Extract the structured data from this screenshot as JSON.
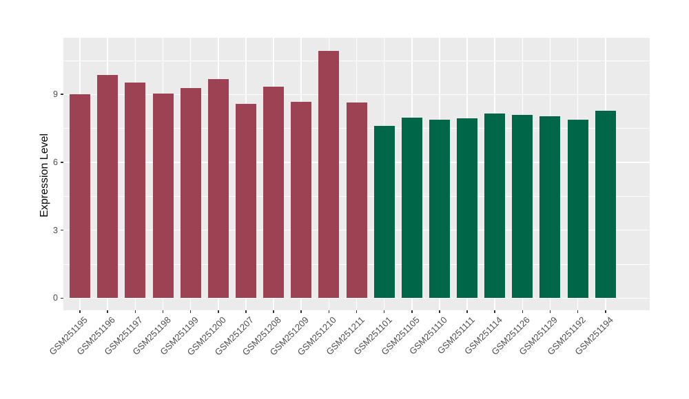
{
  "chart_data": {
    "type": "bar",
    "title": "",
    "xlabel": "",
    "ylabel": "Expression Level",
    "ylim": [
      0,
      11.5
    ],
    "yticks_major": [
      0,
      3,
      6,
      9
    ],
    "yticks_minor": [
      1.5,
      4.5,
      7.5,
      10.5
    ],
    "grid": "on",
    "legend_position": "none",
    "panel_background": "#EBEBEB",
    "grid_color": "#FFFFFF",
    "group_colors": {
      "crimson": "#9C4252",
      "green": "#006648"
    },
    "categories": [
      "GSM251195",
      "GSM251196",
      "GSM251197",
      "GSM251198",
      "GSM251199",
      "GSM251200",
      "GSM251207",
      "GSM251208",
      "GSM251209",
      "GSM251210",
      "GSM251211",
      "GSM251101",
      "GSM251105",
      "GSM251110",
      "GSM251111",
      "GSM251114",
      "GSM251126",
      "GSM251129",
      "GSM251192",
      "GSM251194"
    ],
    "bars": [
      {
        "label": "GSM251195",
        "value": 9.0,
        "group": "crimson"
      },
      {
        "label": "GSM251196",
        "value": 9.86,
        "group": "crimson"
      },
      {
        "label": "GSM251197",
        "value": 9.52,
        "group": "crimson"
      },
      {
        "label": "GSM251198",
        "value": 9.05,
        "group": "crimson"
      },
      {
        "label": "GSM251199",
        "value": 9.27,
        "group": "crimson"
      },
      {
        "label": "GSM251200",
        "value": 9.68,
        "group": "crimson"
      },
      {
        "label": "GSM251207",
        "value": 8.57,
        "group": "crimson"
      },
      {
        "label": "GSM251208",
        "value": 9.35,
        "group": "crimson"
      },
      {
        "label": "GSM251209",
        "value": 8.66,
        "group": "crimson"
      },
      {
        "label": "GSM251210",
        "value": 10.92,
        "group": "crimson"
      },
      {
        "label": "GSM251211",
        "value": 8.63,
        "group": "crimson"
      },
      {
        "label": "GSM251101",
        "value": 7.61,
        "group": "green"
      },
      {
        "label": "GSM251105",
        "value": 7.97,
        "group": "green"
      },
      {
        "label": "GSM251110",
        "value": 7.89,
        "group": "green"
      },
      {
        "label": "GSM251111",
        "value": 7.95,
        "group": "green"
      },
      {
        "label": "GSM251114",
        "value": 8.17,
        "group": "green"
      },
      {
        "label": "GSM251126",
        "value": 8.1,
        "group": "green"
      },
      {
        "label": "GSM251129",
        "value": 8.04,
        "group": "green"
      },
      {
        "label": "GSM251192",
        "value": 7.88,
        "group": "green"
      },
      {
        "label": "GSM251194",
        "value": 8.29,
        "group": "green"
      }
    ]
  }
}
